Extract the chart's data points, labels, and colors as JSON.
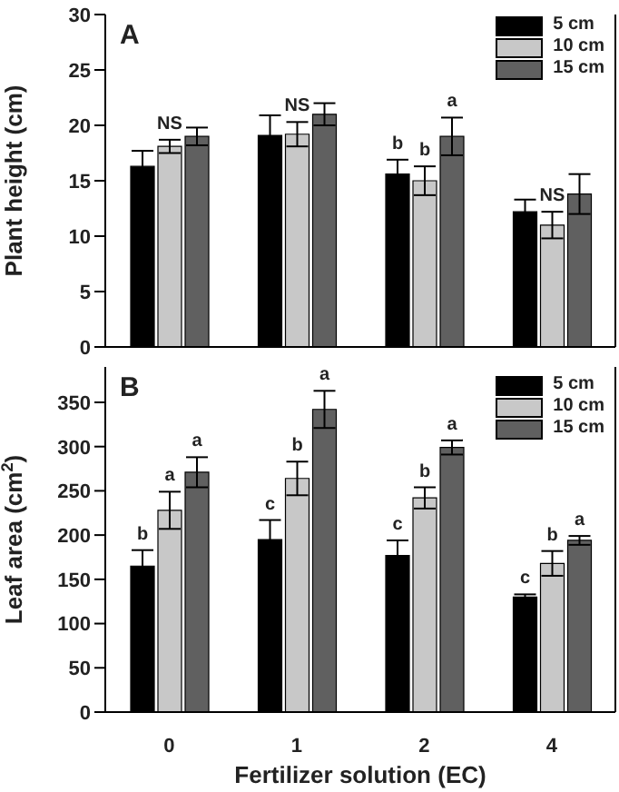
{
  "chart_data": [
    {
      "type": "bar",
      "title": "A",
      "ylabel": "Plant height (cm)",
      "categories": [
        "0",
        "1",
        "2",
        "4"
      ],
      "ylim": [
        0,
        30
      ],
      "yticks": [
        0,
        5,
        10,
        15,
        20,
        25,
        30
      ],
      "tick_labels": "y",
      "legend": "top right",
      "series": [
        {
          "name": "5 cm",
          "color": "#000000",
          "values": [
            16.3,
            19.1,
            15.6,
            12.2
          ],
          "errors": [
            1.4,
            1.8,
            1.3,
            1.1
          ],
          "value_labels": [
            null,
            null,
            "b",
            null
          ]
        },
        {
          "name": "10 cm",
          "color": "#c8c8c8",
          "values": [
            18.1,
            19.2,
            15.0,
            11.0
          ],
          "errors": [
            0.6,
            1.1,
            1.3,
            1.2
          ],
          "value_labels": [
            "NS",
            "NS",
            "b",
            "NS"
          ]
        },
        {
          "name": "15 cm",
          "color": "#606060",
          "values": [
            19.0,
            21.0,
            19.0,
            13.8
          ],
          "errors": [
            0.8,
            1.0,
            1.7,
            1.8
          ],
          "value_labels": [
            null,
            null,
            "a",
            null
          ]
        }
      ]
    },
    {
      "type": "bar",
      "title": "B",
      "ylabel": "Leaf area (cm$^{2}$)",
      "xlabel": "Fertilizer solution (EC)",
      "categories": [
        "0",
        "1",
        "2",
        "4"
      ],
      "ylim": [
        0,
        390
      ],
      "yticks": [
        0,
        50,
        100,
        150,
        200,
        250,
        300,
        350
      ],
      "legend": "top right",
      "series": [
        {
          "name": "5 cm",
          "color": "#000000",
          "values": [
            165,
            195,
            177,
            130
          ],
          "errors": [
            18,
            22,
            17,
            3
          ],
          "value_labels": [
            "b",
            "c",
            "c",
            "c"
          ]
        },
        {
          "name": "10 cm",
          "color": "#c8c8c8",
          "values": [
            228,
            264,
            242,
            168
          ],
          "errors": [
            21,
            19,
            12,
            14
          ],
          "value_labels": [
            "a",
            "b",
            "b",
            "b"
          ]
        },
        {
          "name": "15 cm",
          "color": "#606060",
          "values": [
            271,
            342,
            299,
            194
          ],
          "errors": [
            17,
            21,
            8,
            5
          ],
          "value_labels": [
            "a",
            "a",
            "a",
            "a"
          ]
        }
      ]
    }
  ]
}
